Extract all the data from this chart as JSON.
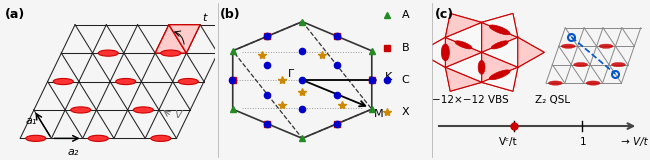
{
  "fig_width": 6.5,
  "fig_height": 1.6,
  "dpi": 100,
  "bg_color": "#f5f5f5",
  "panel_labels": [
    "(a)",
    "(b)",
    "(c)"
  ],
  "panel_a": {
    "lattice_color": "#222222",
    "dimer_color": "#cc0000",
    "dimer_fill": "#ff3333",
    "highlight_fill": "#ffcccc",
    "highlight_edge": "#cc0000",
    "t_label": "t",
    "V_label": "V",
    "a1_label": "a₁",
    "a2_label": "a₂",
    "rows": 4,
    "cols": 5
  },
  "panel_b": {
    "hex_color": "#333333",
    "dashed_color": "#333333",
    "dotted_color": "#999999",
    "A_color": "#228B22",
    "B_color": "#cc0000",
    "C_color": "#0000cc",
    "X_color": "#cc8800",
    "Gamma_label": "Γ",
    "K_label": "K",
    "M_label": "M",
    "legend_labels": [
      "A",
      "B",
      "C",
      "X"
    ]
  },
  "panel_c": {
    "vbs_label": "−12×−12 VBS",
    "qsl_label": "Z₂ QSL",
    "vc_label": "Vᶜ/t",
    "one_label": "1",
    "vt_label": "→ V/t",
    "dimer_color": "#cc0000",
    "triangle_fill": "#ffcccc",
    "triangle_edge": "#cc0000",
    "lattice_color": "#888888",
    "blue_dashed_color": "#0055cc",
    "axis_color": "#444444"
  }
}
